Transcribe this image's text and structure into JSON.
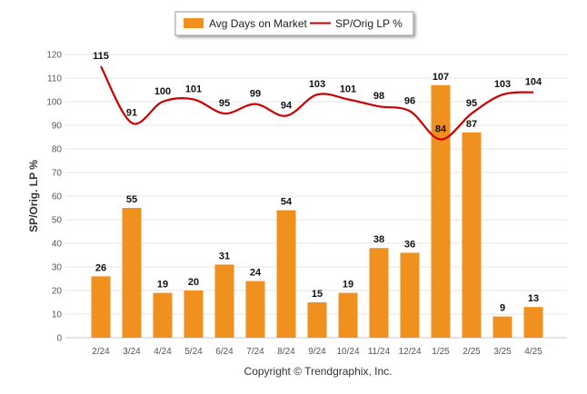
{
  "chart_data": {
    "type": "bar+line",
    "categories": [
      "2/24",
      "3/24",
      "4/24",
      "5/24",
      "6/24",
      "7/24",
      "8/24",
      "9/24",
      "10/24",
      "11/24",
      "12/24",
      "1/25",
      "2/25",
      "3/25",
      "4/25"
    ],
    "series": [
      {
        "name": "Avg Days on Market",
        "type": "bar",
        "color": "#f0901e",
        "values": [
          26,
          55,
          19,
          20,
          31,
          24,
          54,
          15,
          19,
          38,
          36,
          107,
          87,
          9,
          13
        ]
      },
      {
        "name": "SP/Orig LP %",
        "type": "line",
        "color": "#cc0000",
        "values": [
          115,
          91,
          100,
          101,
          95,
          99,
          94,
          103,
          101,
          98,
          96,
          84,
          95,
          103,
          104
        ]
      }
    ],
    "ylabel": "SP/Orig. LP %",
    "ylim": [
      0,
      120
    ],
    "yticks": [
      0,
      10,
      20,
      30,
      40,
      50,
      60,
      70,
      80,
      90,
      100,
      110,
      120
    ],
    "grid": true,
    "legend_position": "top-center"
  },
  "footer": {
    "copyright": "Copyright © Trendgraphix, Inc."
  }
}
